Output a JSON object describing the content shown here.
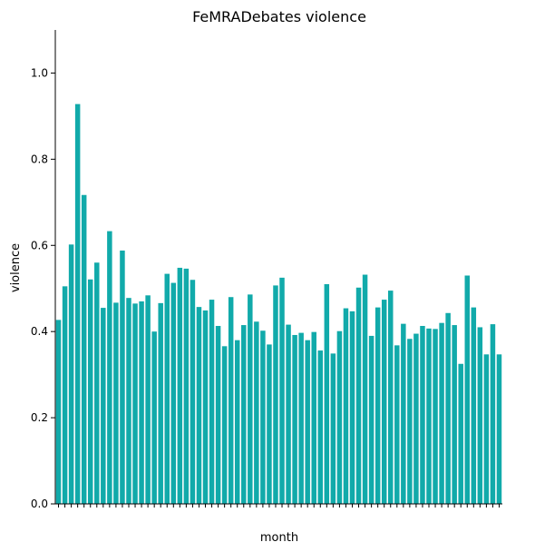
{
  "chart_data": {
    "type": "bar",
    "title": "FeMRADebates violence",
    "xlabel": "month",
    "ylabel": "violence",
    "ylim": [
      0,
      1.1
    ],
    "yticks": [
      "0.0",
      "0.2",
      "0.4",
      "0.6",
      "0.8",
      "1.0"
    ],
    "bar_color": "#11aaaa",
    "grid": false,
    "values": [
      0.427,
      0.505,
      0.602,
      0.928,
      0.717,
      0.521,
      0.56,
      0.455,
      0.633,
      0.467,
      0.588,
      0.478,
      0.465,
      0.47,
      0.484,
      0.4,
      0.466,
      0.534,
      0.513,
      0.548,
      0.546,
      0.52,
      0.457,
      0.449,
      0.474,
      0.413,
      0.366,
      0.48,
      0.38,
      0.415,
      0.486,
      0.423,
      0.402,
      0.37,
      0.507,
      0.525,
      0.416,
      0.392,
      0.397,
      0.38,
      0.399,
      0.356,
      0.51,
      0.349,
      0.401,
      0.454,
      0.447,
      0.502,
      0.532,
      0.39,
      0.456,
      0.474,
      0.495,
      0.368,
      0.418,
      0.383,
      0.395,
      0.413,
      0.407,
      0.406,
      0.42,
      0.443,
      0.415,
      0.325,
      0.53,
      0.456,
      0.41,
      0.347,
      0.417,
      0.347
    ]
  }
}
